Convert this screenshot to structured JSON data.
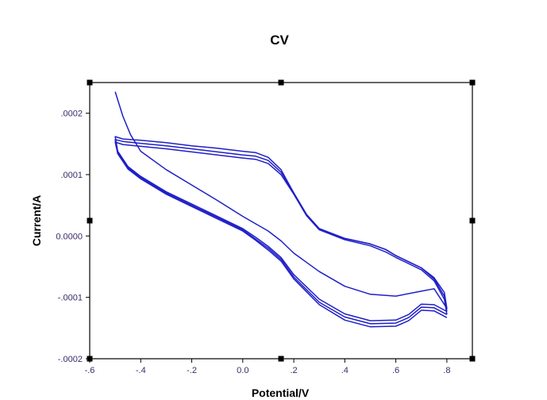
{
  "chart_data": {
    "type": "line",
    "title": "CV",
    "xlabel": "Potential/V",
    "ylabel": "Current/A",
    "xlim": [
      -0.6,
      0.9
    ],
    "ylim": [
      -0.0002,
      0.00025
    ],
    "x_ticks": [
      {
        "value": -0.6,
        "label": "-.6"
      },
      {
        "value": -0.4,
        "label": "-.4"
      },
      {
        "value": -0.2,
        "label": "-.2"
      },
      {
        "value": 0.0,
        "label": "0.0"
      },
      {
        "value": 0.2,
        "label": ".2"
      },
      {
        "value": 0.4,
        "label": ".4"
      },
      {
        "value": 0.6,
        "label": ".6"
      },
      {
        "value": 0.8,
        "label": ".8"
      }
    ],
    "y_ticks": [
      {
        "value": 0.0002,
        "label": ".0002"
      },
      {
        "value": 0.0001,
        "label": ".0001"
      },
      {
        "value": 0.0,
        "label": "0.0000"
      },
      {
        "value": -0.0001,
        "label": "-.0001"
      },
      {
        "value": -0.0002,
        "label": "-.0002"
      }
    ],
    "line_color": "#1f1fc8",
    "grid": false,
    "legend": "none",
    "series": [
      {
        "points": [
          [
            -0.5,
            0.000235
          ],
          [
            -0.47,
            0.000195
          ],
          [
            -0.44,
            0.000165
          ],
          [
            -0.4,
            0.000138
          ],
          [
            -0.3,
            0.000108
          ],
          [
            -0.2,
            8.3e-05
          ],
          [
            -0.1,
            5.8e-05
          ],
          [
            0.0,
            3.2e-05
          ],
          [
            0.1,
            8e-06
          ],
          [
            0.15,
            -8e-06
          ],
          [
            0.2,
            -2.8e-05
          ],
          [
            0.3,
            -5.8e-05
          ],
          [
            0.4,
            -8.2e-05
          ],
          [
            0.5,
            -9.5e-05
          ],
          [
            0.6,
            -9.8e-05
          ],
          [
            0.7,
            -9e-05
          ],
          [
            0.75,
            -8.6e-05
          ],
          [
            0.8,
            -0.000118
          ],
          [
            0.79,
            -9.2e-05
          ],
          [
            0.75,
            -6.8e-05
          ],
          [
            0.7,
            -5.2e-05
          ],
          [
            0.6,
            -3.2e-05
          ],
          [
            0.56,
            -2.2e-05
          ],
          [
            0.5,
            -1.3e-05
          ],
          [
            0.4,
            -4e-06
          ],
          [
            0.3,
            1.2e-05
          ],
          [
            0.25,
            3.5e-05
          ],
          [
            0.2,
            7e-05
          ],
          [
            0.15,
            0.000108
          ],
          [
            0.1,
            0.000128
          ],
          [
            0.05,
            0.000136
          ],
          [
            0.0,
            0.000138
          ],
          [
            -0.1,
            0.000143
          ],
          [
            -0.2,
            0.000147
          ],
          [
            -0.3,
            0.000152
          ],
          [
            -0.4,
            0.000156
          ],
          [
            -0.47,
            0.000158
          ],
          [
            -0.5,
            0.000162
          ],
          [
            -0.49,
            0.000138
          ],
          [
            -0.45,
            0.000113
          ],
          [
            -0.4,
            9.7e-05
          ],
          [
            -0.3,
            7.2e-05
          ],
          [
            -0.2,
            5.2e-05
          ],
          [
            -0.1,
            3.2e-05
          ],
          [
            0.0,
            1.2e-05
          ],
          [
            0.05,
            -2e-06
          ],
          [
            0.1,
            -1.7e-05
          ],
          [
            0.15,
            -3.5e-05
          ],
          [
            0.2,
            -6.3e-05
          ],
          [
            0.3,
            -0.000103
          ],
          [
            0.4,
            -0.000127
          ],
          [
            0.5,
            -0.000138
          ],
          [
            0.6,
            -0.000137
          ],
          [
            0.65,
            -0.000128
          ],
          [
            0.7,
            -0.000111
          ],
          [
            0.75,
            -0.000112
          ],
          [
            0.8,
            -0.000123
          ]
        ]
      },
      {
        "points": [
          [
            0.8,
            -0.000123
          ],
          [
            0.79,
            -9.8e-05
          ],
          [
            0.75,
            -7e-05
          ],
          [
            0.7,
            -5.2e-05
          ],
          [
            0.6,
            -3.2e-05
          ],
          [
            0.56,
            -2.2e-05
          ],
          [
            0.5,
            -1.3e-05
          ],
          [
            0.4,
            -4e-06
          ],
          [
            0.3,
            1.2e-05
          ],
          [
            0.25,
            3.5e-05
          ],
          [
            0.2,
            7e-05
          ],
          [
            0.15,
            0.000104
          ],
          [
            0.1,
            0.000123
          ],
          [
            0.05,
            0.00013
          ],
          [
            0.0,
            0.000132
          ],
          [
            -0.1,
            0.000137
          ],
          [
            -0.2,
            0.000142
          ],
          [
            -0.3,
            0.000147
          ],
          [
            -0.4,
            0.000151
          ],
          [
            -0.47,
            0.000154
          ],
          [
            -0.5,
            0.000157
          ],
          [
            -0.49,
            0.000136
          ],
          [
            -0.45,
            0.000111
          ],
          [
            -0.4,
            9.5e-05
          ],
          [
            -0.3,
            7e-05
          ],
          [
            -0.2,
            5e-05
          ],
          [
            -0.1,
            3e-05
          ],
          [
            0.0,
            1e-05
          ],
          [
            0.05,
            -5e-06
          ],
          [
            0.1,
            -2e-05
          ],
          [
            0.15,
            -3.8e-05
          ],
          [
            0.2,
            -6.7e-05
          ],
          [
            0.3,
            -0.000108
          ],
          [
            0.4,
            -0.000132
          ],
          [
            0.5,
            -0.000143
          ],
          [
            0.6,
            -0.000142
          ],
          [
            0.65,
            -0.000133
          ],
          [
            0.7,
            -0.000116
          ],
          [
            0.75,
            -0.000117
          ],
          [
            0.8,
            -0.000128
          ]
        ]
      },
      {
        "points": [
          [
            0.8,
            -0.000128
          ],
          [
            0.79,
            -0.000103
          ],
          [
            0.75,
            -7.3e-05
          ],
          [
            0.7,
            -5.5e-05
          ],
          [
            0.6,
            -3.5e-05
          ],
          [
            0.56,
            -2.6e-05
          ],
          [
            0.5,
            -1.6e-05
          ],
          [
            0.4,
            -6e-06
          ],
          [
            0.3,
            1e-05
          ],
          [
            0.25,
            3.3e-05
          ],
          [
            0.2,
            6.8e-05
          ],
          [
            0.15,
            0.0001
          ],
          [
            0.1,
            0.000118
          ],
          [
            0.05,
            0.000125
          ],
          [
            0.0,
            0.000127
          ],
          [
            -0.1,
            0.000132
          ],
          [
            -0.2,
            0.000137
          ],
          [
            -0.3,
            0.000142
          ],
          [
            -0.4,
            0.000146
          ],
          [
            -0.47,
            0.000149
          ],
          [
            -0.5,
            0.000153
          ],
          [
            -0.49,
            0.000134
          ],
          [
            -0.45,
            0.000109
          ],
          [
            -0.4,
            9.3e-05
          ],
          [
            -0.3,
            6.8e-05
          ],
          [
            -0.2,
            4.8e-05
          ],
          [
            -0.1,
            2.8e-05
          ],
          [
            0.0,
            8e-06
          ],
          [
            0.05,
            -7e-06
          ],
          [
            0.1,
            -2.3e-05
          ],
          [
            0.15,
            -4.1e-05
          ],
          [
            0.2,
            -7e-05
          ],
          [
            0.3,
            -0.000112
          ],
          [
            0.4,
            -0.000137
          ],
          [
            0.5,
            -0.000148
          ],
          [
            0.6,
            -0.000147
          ],
          [
            0.65,
            -0.000138
          ],
          [
            0.7,
            -0.000121
          ],
          [
            0.75,
            -0.000122
          ],
          [
            0.8,
            -0.000133
          ]
        ]
      }
    ]
  }
}
